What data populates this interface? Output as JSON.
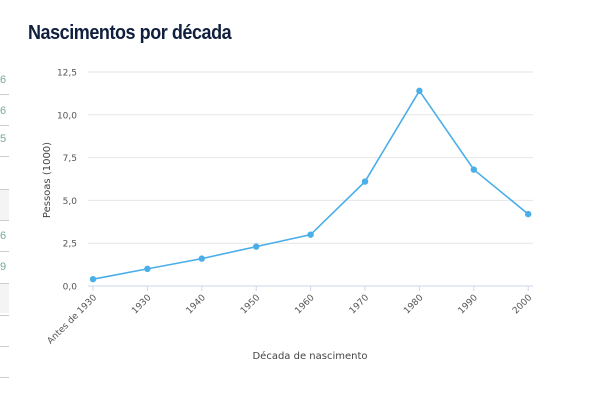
{
  "left_fragments": [
    "6",
    "6",
    "5",
    "6",
    "9"
  ],
  "chart_data": {
    "type": "line",
    "title": "Nascimentos por década",
    "xlabel": "Década de nascimento",
    "ylabel": "Pessoas (1000)",
    "categories": [
      "Antes de 1930",
      "1930",
      "1940",
      "1950",
      "1960",
      "1970",
      "1980",
      "1990",
      "2000"
    ],
    "values": [
      0.4,
      1.0,
      1.6,
      2.3,
      3.0,
      6.1,
      11.4,
      6.8,
      4.2
    ],
    "ylim": [
      0,
      12.5
    ],
    "yticks": [
      "0,0",
      "2,5",
      "5,0",
      "7,5",
      "10,0",
      "12,5"
    ],
    "grid": true,
    "color": "#4aaee8"
  }
}
